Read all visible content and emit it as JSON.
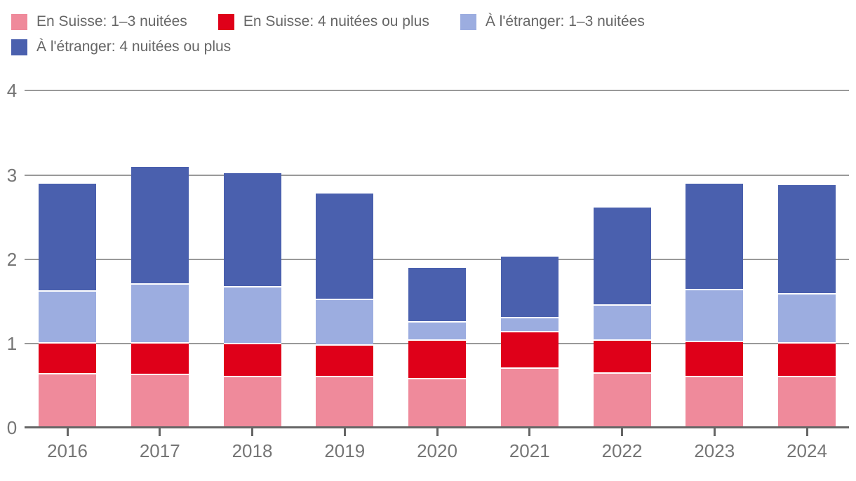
{
  "chart_data": {
    "type": "bar",
    "stacked": true,
    "title": "",
    "xlabel": "",
    "ylabel": "",
    "categories": [
      "2016",
      "2017",
      "2018",
      "2019",
      "2020",
      "2021",
      "2022",
      "2023",
      "2024"
    ],
    "series": [
      {
        "name": "En Suisse: 1–3 nuitées",
        "color": "#ef8a9b",
        "values": [
          0.64,
          0.63,
          0.61,
          0.61,
          0.58,
          0.71,
          0.65,
          0.61,
          0.61
        ]
      },
      {
        "name": "En Suisse: 4 nuitées ou plus",
        "color": "#df0019",
        "values": [
          0.37,
          0.38,
          0.39,
          0.37,
          0.46,
          0.43,
          0.39,
          0.41,
          0.4
        ]
      },
      {
        "name": "À l'étranger: 1–3 nuitées",
        "color": "#9cade0",
        "values": [
          0.61,
          0.7,
          0.67,
          0.54,
          0.22,
          0.17,
          0.42,
          0.62,
          0.58
        ]
      },
      {
        "name": "À l'étranger: 4 nuitées ou plus",
        "color": "#4a60ae",
        "values": [
          1.28,
          1.39,
          1.35,
          1.26,
          0.64,
          0.72,
          1.15,
          1.26,
          1.29
        ]
      }
    ],
    "ylim": [
      0,
      4
    ],
    "yticks": [
      0,
      1,
      2,
      3,
      4
    ],
    "grid": true,
    "legend_position": "top"
  },
  "styles": {
    "background": "#ffffff",
    "grid_color": "#999999",
    "axis_color": "#666666",
    "tick_label_color": "#757575",
    "legend_text_color": "#666666",
    "separator_color": "#ffffff"
  }
}
